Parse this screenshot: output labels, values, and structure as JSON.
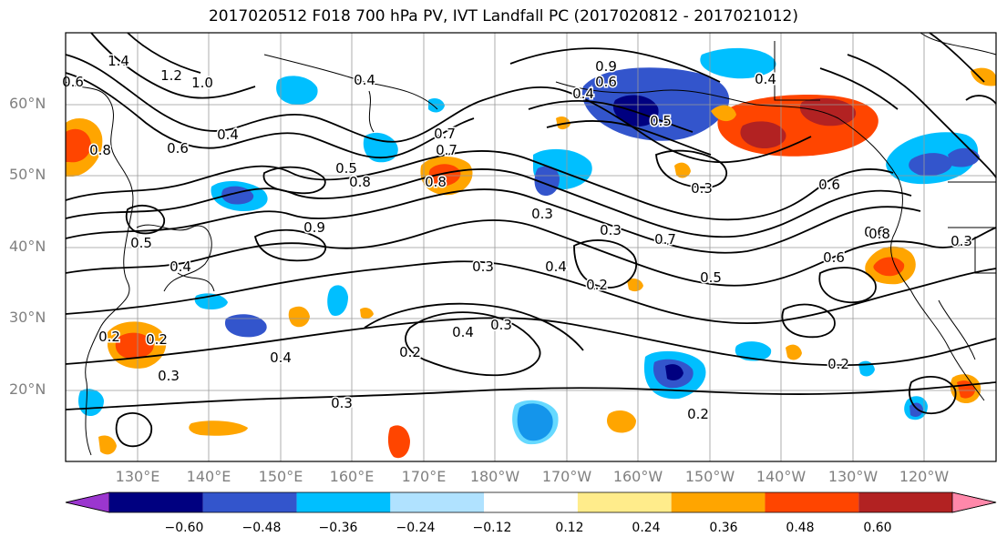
{
  "title": "2017020512 F018 700 hPa PV, IVT Landfall PC (2017020812 - 2017021012)",
  "lat_labels": [
    "60°N",
    "50°N",
    "40°N",
    "30°N",
    "20°N"
  ],
  "lon_labels": [
    "130°E",
    "140°E",
    "150°E",
    "160°E",
    "170°E",
    "180°W",
    "170°W",
    "160°W",
    "150°W",
    "140°W",
    "130°W",
    "120°W"
  ],
  "colorbar": {
    "tick_labels": [
      "−0.60",
      "−0.48",
      "−0.36",
      "−0.24",
      "−0.12",
      "0.12",
      "0.24",
      "0.36",
      "0.48",
      "0.60"
    ],
    "colors": [
      "#9b36cf",
      "#000080",
      "#3355cc",
      "#00bfff",
      "#b0e2ff",
      "#ffffff",
      "#ffec8b",
      "#ffa500",
      "#ff4500",
      "#b22222",
      "#ff88aa"
    ]
  },
  "contour_labels": [
    "1.4",
    "1.2",
    "1.0",
    "0.9",
    "0.8",
    "0.8",
    "0.7",
    "0.6",
    "0.6",
    "0.6",
    "0.5",
    "0.5",
    "0.5",
    "0.5",
    "0.4",
    "0.4",
    "0.4",
    "0.4",
    "0.4",
    "0.3",
    "0.3",
    "0.3",
    "0.3",
    "0.3",
    "0.2",
    "0.2",
    "0.2",
    "0.2",
    "0.2",
    "0.6",
    "0.9",
    "0.8",
    "0.7",
    "0.3",
    "0.4",
    "0.6",
    "0.4",
    "0.7",
    "0.6",
    "0.3",
    "0.8",
    "0.2",
    "0.3",
    "0.4"
  ]
}
